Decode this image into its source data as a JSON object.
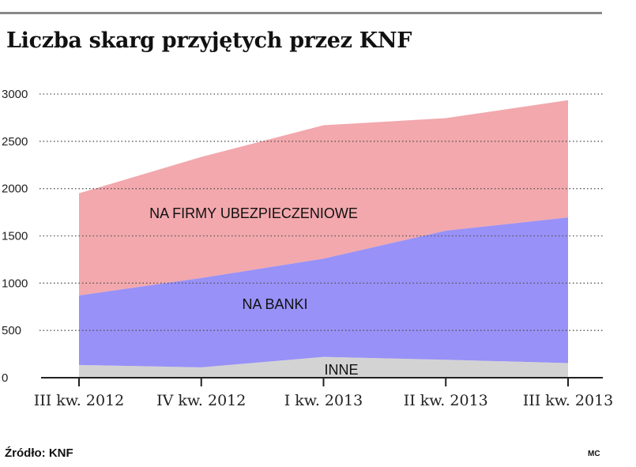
{
  "header": {
    "title": "Liczba skarg przyjętych przez KNF"
  },
  "footer": {
    "source": "Źródło: KNF",
    "credit": "MC"
  },
  "chart_data": {
    "type": "area",
    "stacked": true,
    "title": "Liczba skarg przyjętych przez KNF",
    "categories": [
      "III kw. 2012",
      "IV kw. 2012",
      "I kw. 2013",
      "II kw. 2013",
      "III kw. 2013"
    ],
    "y_ticks": [
      0,
      500,
      1000,
      1500,
      2000,
      2500,
      3000
    ],
    "ylim": [
      0,
      3000
    ],
    "grid": true,
    "series": [
      {
        "name": "INNE",
        "values": [
          135,
          110,
          220,
          190,
          155
        ],
        "color": "#d3d3d3"
      },
      {
        "name": "NA BANKI",
        "values": [
          735,
          945,
          1040,
          1365,
          1540
        ],
        "color": "#9891f7"
      },
      {
        "name": "NA FIRMY UBEZPIECZENIOWE",
        "values": [
          1080,
          1280,
          1410,
          1190,
          1240
        ],
        "color": "#f2a8ad"
      }
    ]
  }
}
